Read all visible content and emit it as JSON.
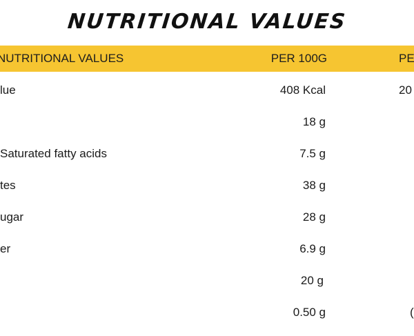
{
  "title": "NUTRITIONAL VALUES",
  "table": {
    "headers": {
      "label": "NUTRITIONAL VALUES",
      "per100": "PER 100G",
      "serving": "PE"
    },
    "rows": [
      {
        "label": "lue",
        "per100": "408 Kcal",
        "serving": "20"
      },
      {
        "label": "",
        "per100": "18 g",
        "serving": ""
      },
      {
        "label": "Saturated fatty acids",
        "per100": "7.5 g",
        "serving": ""
      },
      {
        "label": "tes",
        "per100": "38 g",
        "serving": ""
      },
      {
        "label": "ugar",
        "per100": "28 g",
        "serving": ""
      },
      {
        "label": "er",
        "per100": "6.9 g",
        "serving": ""
      },
      {
        "label": "",
        "per100": "20 g",
        "serving": ""
      },
      {
        "label": "",
        "per100": "0.50 g",
        "serving": "("
      }
    ]
  },
  "colors": {
    "header_bg": "#f6c531",
    "text": "#1a1a1a"
  }
}
